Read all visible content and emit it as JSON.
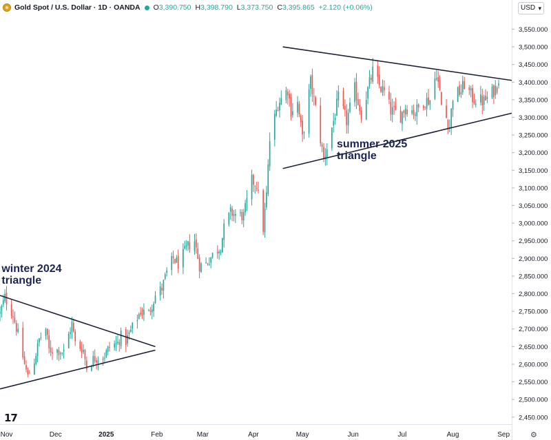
{
  "header": {
    "title": "Gold Spot / U.S. Dollar · 1D · OANDA",
    "open_label": "O",
    "open": "3,390.750",
    "high_label": "H",
    "high": "3,398.790",
    "low_label": "L",
    "low": "3,373.750",
    "close_label": "C",
    "close": "3,395.865",
    "change": "+2.120 (+0.06%)",
    "currency": "USD",
    "up_color": "#26a69a",
    "down_color": "#ef5350"
  },
  "logo_text": "17",
  "chart_data": {
    "type": "candlestick",
    "title": "Gold Spot / U.S. Dollar · 1D · OANDA",
    "ylim": [
      2430,
      3590
    ],
    "y_ticks": [
      2450,
      2500,
      2550,
      2600,
      2650,
      2700,
      2750,
      2800,
      2850,
      2900,
      2950,
      3000,
      3050,
      3100,
      3150,
      3200,
      3250,
      3300,
      3350,
      3400,
      3450,
      3500,
      3550
    ],
    "y_tick_labels": [
      "2,450.000",
      "2,500.000",
      "2,550.000",
      "2,600.000",
      "2,650.000",
      "2,700.000",
      "2,750.000",
      "2,800.000",
      "2,850.000",
      "2,900.000",
      "2,950.000",
      "3,000.000",
      "3,050.000",
      "3,100.000",
      "3,150.000",
      "3,200.000",
      "3,250.000",
      "3,300.000",
      "3,350.000",
      "3,400.000",
      "3,450.000",
      "3,500.000",
      "3,550.000"
    ],
    "x_range": [
      "2024-10-28",
      "2025-09-06"
    ],
    "x_ticks": [
      {
        "date": "2024-11-01",
        "label": "Nov"
      },
      {
        "date": "2024-12-01",
        "label": "Dec"
      },
      {
        "date": "2025-01-01",
        "label": "2025"
      },
      {
        "date": "2025-02-01",
        "label": "Feb"
      },
      {
        "date": "2025-03-01",
        "label": "Mar"
      },
      {
        "date": "2025-04-01",
        "label": "Apr"
      },
      {
        "date": "2025-05-01",
        "label": "May"
      },
      {
        "date": "2025-06-01",
        "label": "Jun"
      },
      {
        "date": "2025-07-01",
        "label": "Jul"
      },
      {
        "date": "2025-08-01",
        "label": "Aug"
      },
      {
        "date": "2025-09-01",
        "label": "Sep"
      }
    ],
    "close_path": [
      {
        "date": "2024-10-28",
        "value": 2745
      },
      {
        "date": "2024-10-31",
        "value": 2790
      },
      {
        "date": "2024-11-05",
        "value": 2740
      },
      {
        "date": "2024-11-08",
        "value": 2685
      },
      {
        "date": "2024-11-12",
        "value": 2600
      },
      {
        "date": "2024-11-14",
        "value": 2565
      },
      {
        "date": "2024-11-18",
        "value": 2610
      },
      {
        "date": "2024-11-21",
        "value": 2670
      },
      {
        "date": "2024-11-25",
        "value": 2700
      },
      {
        "date": "2024-11-27",
        "value": 2640
      },
      {
        "date": "2024-12-02",
        "value": 2640
      },
      {
        "date": "2024-12-06",
        "value": 2635
      },
      {
        "date": "2024-12-11",
        "value": 2715
      },
      {
        "date": "2024-12-13",
        "value": 2660
      },
      {
        "date": "2024-12-18",
        "value": 2640
      },
      {
        "date": "2024-12-20",
        "value": 2590
      },
      {
        "date": "2024-12-24",
        "value": 2615
      },
      {
        "date": "2024-12-31",
        "value": 2625
      },
      {
        "date": "2025-01-03",
        "value": 2650
      },
      {
        "date": "2025-01-08",
        "value": 2660
      },
      {
        "date": "2025-01-10",
        "value": 2680
      },
      {
        "date": "2025-01-13",
        "value": 2665
      },
      {
        "date": "2025-01-17",
        "value": 2705
      },
      {
        "date": "2025-01-22",
        "value": 2750
      },
      {
        "date": "2025-01-27",
        "value": 2745
      },
      {
        "date": "2025-01-31",
        "value": 2795
      },
      {
        "date": "2025-02-04",
        "value": 2815
      },
      {
        "date": "2025-02-07",
        "value": 2860
      },
      {
        "date": "2025-02-11",
        "value": 2900
      },
      {
        "date": "2025-02-14",
        "value": 2885
      },
      {
        "date": "2025-02-20",
        "value": 2935
      },
      {
        "date": "2025-02-24",
        "value": 2950
      },
      {
        "date": "2025-02-27",
        "value": 2880
      },
      {
        "date": "2025-03-03",
        "value": 2885
      },
      {
        "date": "2025-03-07",
        "value": 2910
      },
      {
        "date": "2025-03-12",
        "value": 2935
      },
      {
        "date": "2025-03-14",
        "value": 2985
      },
      {
        "date": "2025-03-18",
        "value": 3030
      },
      {
        "date": "2025-03-21",
        "value": 3025
      },
      {
        "date": "2025-03-26",
        "value": 3020
      },
      {
        "date": "2025-03-31",
        "value": 3120
      },
      {
        "date": "2025-04-03",
        "value": 3110
      },
      {
        "date": "2025-04-07",
        "value": 2985
      },
      {
        "date": "2025-04-09",
        "value": 3080
      },
      {
        "date": "2025-04-11",
        "value": 3235
      },
      {
        "date": "2025-04-16",
        "value": 3340
      },
      {
        "date": "2025-04-22",
        "value": 3380
      },
      {
        "date": "2025-04-24",
        "value": 3320
      },
      {
        "date": "2025-04-28",
        "value": 3340
      },
      {
        "date": "2025-05-01",
        "value": 3240
      },
      {
        "date": "2025-05-06",
        "value": 3400
      },
      {
        "date": "2025-05-09",
        "value": 3325
      },
      {
        "date": "2025-05-14",
        "value": 3180
      },
      {
        "date": "2025-05-20",
        "value": 3290
      },
      {
        "date": "2025-05-23",
        "value": 3355
      },
      {
        "date": "2025-05-28",
        "value": 3290
      },
      {
        "date": "2025-06-02",
        "value": 3380
      },
      {
        "date": "2025-06-06",
        "value": 3310
      },
      {
        "date": "2025-06-13",
        "value": 3430
      },
      {
        "date": "2025-06-17",
        "value": 3390
      },
      {
        "date": "2025-06-20",
        "value": 3370
      },
      {
        "date": "2025-06-24",
        "value": 3320
      },
      {
        "date": "2025-06-30",
        "value": 3305
      },
      {
        "date": "2025-07-03",
        "value": 3330
      },
      {
        "date": "2025-07-09",
        "value": 3315
      },
      {
        "date": "2025-07-14",
        "value": 3345
      },
      {
        "date": "2025-07-18",
        "value": 3350
      },
      {
        "date": "2025-07-22",
        "value": 3430
      },
      {
        "date": "2025-07-25",
        "value": 3335
      },
      {
        "date": "2025-07-30",
        "value": 3275
      },
      {
        "date": "2025-08-01",
        "value": 3360
      },
      {
        "date": "2025-08-06",
        "value": 3375
      },
      {
        "date": "2025-08-08",
        "value": 3395
      },
      {
        "date": "2025-08-13",
        "value": 3355
      },
      {
        "date": "2025-08-20",
        "value": 3345
      },
      {
        "date": "2025-08-25",
        "value": 3370
      },
      {
        "date": "2025-08-29",
        "value": 3396
      }
    ],
    "trendlines": [
      {
        "from": {
          "date": "2024-10-28",
          "value": 2795
        },
        "to": {
          "date": "2025-01-31",
          "value": 2650
        }
      },
      {
        "from": {
          "date": "2024-10-28",
          "value": 2530
        },
        "to": {
          "date": "2025-01-31",
          "value": 2640
        }
      },
      {
        "from": {
          "date": "2025-04-19",
          "value": 3500
        },
        "to": {
          "date": "2025-09-06",
          "value": 3405
        }
      },
      {
        "from": {
          "date": "2025-04-19",
          "value": 3155
        },
        "to": {
          "date": "2025-09-06",
          "value": 3312
        }
      }
    ],
    "annotations": [
      {
        "lines": [
          "winter 2024",
          "triangle"
        ],
        "date": "2024-10-29",
        "value": 2862
      },
      {
        "lines": [
          "summer 2025",
          "triangle"
        ],
        "date": "2025-05-22",
        "value": 3215
      }
    ]
  }
}
